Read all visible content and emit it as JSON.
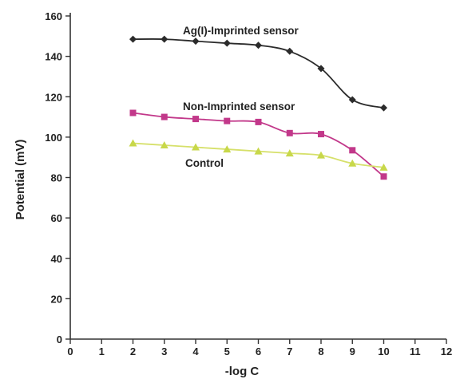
{
  "chart_data": {
    "type": "line",
    "title": "",
    "xlabel": "-log C",
    "ylabel": "Potential (mV)",
    "xlim": [
      0,
      12
    ],
    "ylim": [
      0,
      160
    ],
    "xticks": [
      0,
      1,
      2,
      3,
      4,
      5,
      6,
      7,
      8,
      9,
      10,
      11,
      12
    ],
    "yticks": [
      0,
      20,
      40,
      60,
      80,
      100,
      120,
      140,
      160
    ],
    "grid": false,
    "legend": "none",
    "series": [
      {
        "name": "Ag(I)-Imprinted sensor",
        "marker": "diamond",
        "color": "#2b2b2b",
        "line_color": "#2b2b2b",
        "x": [
          2,
          3,
          4,
          5,
          6,
          7,
          8,
          9,
          10
        ],
        "values": [
          148.5,
          148.5,
          147.5,
          146.5,
          145.5,
          142.5,
          134,
          118.5,
          114.5
        ]
      },
      {
        "name": "Non-Imprinted sensor",
        "marker": "square",
        "color": "#c2388a",
        "line_color": "#c2388a",
        "x": [
          2,
          3,
          4,
          5,
          6,
          7,
          8,
          9,
          10
        ],
        "values": [
          112,
          110,
          109,
          108,
          107.5,
          102,
          101.5,
          93.5,
          80.5
        ]
      },
      {
        "name": "Control",
        "marker": "triangle",
        "color": "#c8d84a",
        "line_color": "#d6e06a",
        "x": [
          2,
          3,
          4,
          5,
          6,
          7,
          8,
          9,
          10
        ],
        "values": [
          97,
          96,
          95,
          94,
          93,
          92,
          91,
          87,
          85
        ]
      }
    ]
  }
}
